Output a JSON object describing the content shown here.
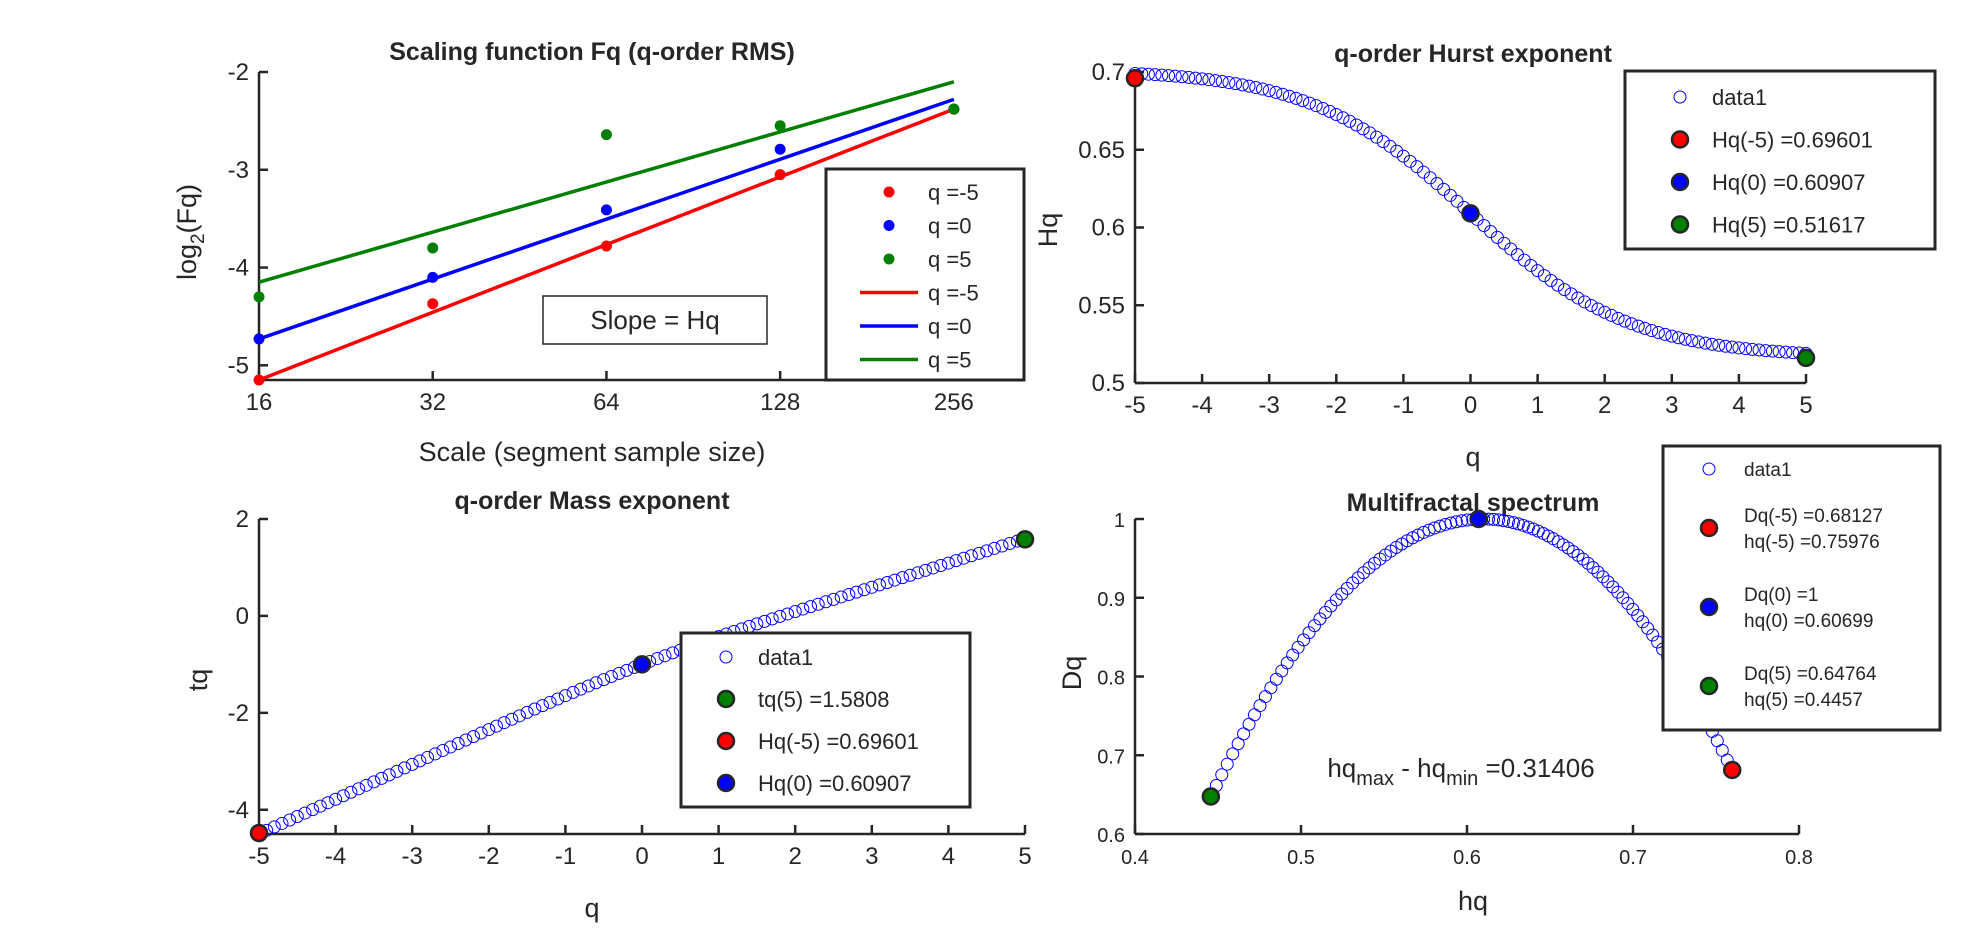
{
  "colors": {
    "red": "#ff0000",
    "blue": "#0000ff",
    "green": "#007f00",
    "open_marker": "#0000ff",
    "axis": "#262626"
  },
  "chart_data": [
    {
      "type": "scatter+line",
      "title": "Scaling function Fq (q-order RMS)",
      "xlabel": "Scale (segment sample size)",
      "ylabel_base": "log",
      "ylabel_sub": "2",
      "ylabel_tail": "(Fq)",
      "x_scale": "log2",
      "xlim": [
        16,
        340
      ],
      "ylim": [
        -5.15,
        -2
      ],
      "xticks": [
        16,
        32,
        64,
        128,
        256
      ],
      "xtick_labels": [
        "16",
        "32",
        "64",
        "128",
        "256"
      ],
      "yticks": [
        -2,
        -3,
        -4,
        -5
      ],
      "ytick_labels": [
        "-2",
        "-3",
        "-4",
        "-5"
      ],
      "grid": false,
      "legend_position": "bottom-right",
      "annotation": "Slope = Hq",
      "point_series": [
        {
          "name": "q =-5",
          "color": "red",
          "x": [
            16,
            32,
            64,
            128,
            256
          ],
          "y": [
            -5.15,
            -4.37,
            -3.78,
            -3.05,
            -2.38
          ]
        },
        {
          "name": "q =0",
          "color": "blue",
          "x": [
            16,
            32,
            64,
            128,
            256
          ],
          "y": [
            -4.73,
            -4.1,
            -3.41,
            -2.79,
            -2.38
          ]
        },
        {
          "name": "q =5",
          "color": "green",
          "x": [
            16,
            32,
            64,
            128,
            256
          ],
          "y": [
            -4.3,
            -3.8,
            -2.64,
            -2.55,
            -2.38
          ]
        }
      ],
      "fit_lines": [
        {
          "name": "q =-5",
          "color": "red",
          "x": [
            16,
            256
          ],
          "y": [
            -5.15,
            -2.38
          ]
        },
        {
          "name": "q =0",
          "color": "blue",
          "x": [
            16,
            256
          ],
          "y": [
            -4.73,
            -2.28
          ]
        },
        {
          "name": "q =5",
          "color": "green",
          "x": [
            16,
            256
          ],
          "y": [
            -4.15,
            -2.1
          ]
        }
      ]
    },
    {
      "type": "scatter",
      "title": "q-order Hurst exponent",
      "xlabel": "q",
      "ylabel": "Hq",
      "xlim": [
        -5,
        5
      ],
      "ylim": [
        0.5,
        0.7
      ],
      "xticks": [
        -5,
        -4,
        -3,
        -2,
        -1,
        0,
        1,
        2,
        3,
        4,
        5
      ],
      "xtick_labels": [
        "-5",
        "-4",
        "-3",
        "-2",
        "-1",
        "0",
        "1",
        "2",
        "3",
        "4",
        "5"
      ],
      "yticks": [
        0.7,
        0.65,
        0.6,
        0.55,
        0.5
      ],
      "ytick_labels": [
        "0.7",
        "0.65",
        "0.6",
        "0.55",
        "0.5"
      ],
      "grid": false,
      "legend_position": "top-right",
      "curve": {
        "name": "data1",
        "q_range": [
          -5,
          5
        ],
        "n_points": 101,
        "h_center": 0.60907,
        "half_range": 0.09,
        "k": 0.42
      },
      "highlights": [
        {
          "label": "Hq(-5) =0.69601",
          "color": "red",
          "x": -5,
          "y": 0.69601
        },
        {
          "label": "Hq(0) =0.60907",
          "color": "blue",
          "x": 0,
          "y": 0.60907
        },
        {
          "label": "Hq(5) =0.51617",
          "color": "green",
          "x": 5,
          "y": 0.51617
        }
      ],
      "legend": [
        "data1",
        "Hq(-5) =0.69601",
        "Hq(0) =0.60907",
        "Hq(5) =0.51617"
      ]
    },
    {
      "type": "scatter",
      "title": "q-order Mass exponent",
      "xlabel": "q",
      "ylabel": "tq",
      "xlim": [
        -5,
        5
      ],
      "ylim": [
        -4.5,
        2
      ],
      "xticks": [
        -5,
        -4,
        -3,
        -2,
        -1,
        0,
        1,
        2,
        3,
        4,
        5
      ],
      "xtick_labels": [
        "-5",
        "-4",
        "-3",
        "-2",
        "-1",
        "0",
        "1",
        "2",
        "3",
        "4",
        "5"
      ],
      "yticks": [
        2,
        0,
        -2,
        -4
      ],
      "ytick_labels": [
        "2",
        "0",
        "-2",
        "-4"
      ],
      "grid": false,
      "legend_position": "bottom-right",
      "curve": {
        "name": "data1",
        "q_range": [
          -5,
          5
        ],
        "n_points": 101,
        "tq_at_0": -1
      },
      "highlights": [
        {
          "label": "tq(5) =1.5808",
          "color": "green",
          "x": 5,
          "y": 1.5808
        },
        {
          "label": "Hq(-5) =0.69601",
          "color": "red",
          "x": -5,
          "y": -4.48
        },
        {
          "label": "Hq(0) =0.60907",
          "color": "blue",
          "x": 0,
          "y": -1
        }
      ],
      "legend": [
        "data1",
        "tq(5) =1.5808",
        "Hq(-5) =0.69601",
        "Hq(0) =0.60907"
      ]
    },
    {
      "type": "scatter",
      "title": "Multifractal spectrum",
      "xlabel": "hq",
      "ylabel": "Dq",
      "xlim": [
        0.4,
        0.8
      ],
      "ylim": [
        0.6,
        1
      ],
      "xticks": [
        0.4,
        0.5,
        0.6,
        0.7,
        0.8
      ],
      "xtick_labels": [
        "0.4",
        "0.5",
        "0.6",
        "0.7",
        "0.8"
      ],
      "yticks": [
        1,
        0.9,
        0.8,
        0.7,
        0.6
      ],
      "ytick_labels": [
        "1",
        "0.9",
        "0.8",
        "0.7",
        "0.6"
      ],
      "grid": false,
      "legend_position": "top-right",
      "annotation": {
        "base1": "hq",
        "sub1": "max",
        "mid": " - hq",
        "sub2": "min",
        "tail": " =0.31406"
      },
      "curve": {
        "name": "data1",
        "n_points": 101,
        "h_min": 0.4457,
        "h_peak": 0.61,
        "h_max": 0.75976,
        "d_min_left": 0.64764,
        "d_min_right": 0.68127
      },
      "highlights": [
        {
          "color": "red",
          "x": 0.75976,
          "y": 0.68127,
          "line1": "Dq(-5) =0.68127",
          "line2": "hq(-5) =0.75976"
        },
        {
          "color": "blue",
          "x": 0.60699,
          "y": 1,
          "line1": "Dq(0) =1",
          "line2": "hq(0) =0.60699"
        },
        {
          "color": "green",
          "x": 0.4457,
          "y": 0.64764,
          "line1": "Dq(5) =0.64764",
          "line2": "hq(5) =0.4457"
        }
      ],
      "legend_first": "data1"
    }
  ]
}
